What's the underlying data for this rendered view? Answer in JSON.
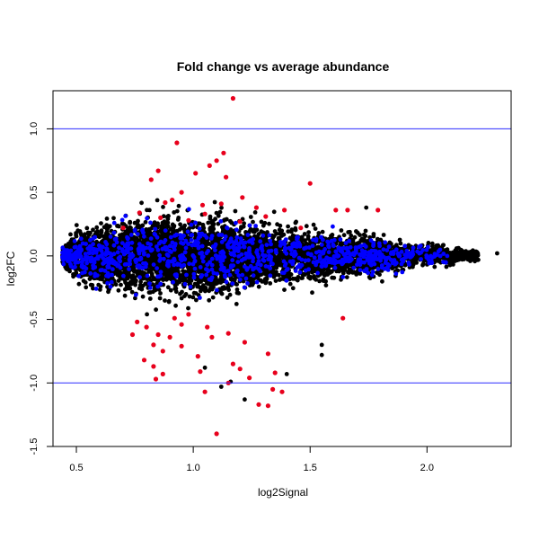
{
  "chart_data": {
    "type": "scatter",
    "title": "Fold change vs average abundance",
    "xlabel": "log2Signal",
    "ylabel": "log2FC",
    "xlim": [
      0.4,
      2.36
    ],
    "ylim": [
      -1.5,
      1.3
    ],
    "xticks": [
      0.5,
      1.0,
      1.5,
      2.0
    ],
    "xtick_labels": [
      "0.5",
      "1.0",
      "1.5",
      "2.0"
    ],
    "yticks": [
      -1.5,
      -1.0,
      -0.5,
      0.0,
      0.5,
      1.0
    ],
    "ytick_labels": [
      "-1.5",
      "-1.0",
      "-0.5",
      "0.0",
      "0.5",
      "1.0"
    ],
    "grid": false,
    "legend": "none",
    "reference_lines": [
      {
        "y": 1.0,
        "color": "#2b2bff"
      },
      {
        "y": -1.0,
        "color": "#2b2bff"
      }
    ],
    "colors": {
      "background_points": "#000000",
      "highlighted_points": "#0000ff",
      "significant_points": "#e8001c"
    },
    "series": [
      {
        "color": "#e8001c",
        "points": [
          [
            1.17,
            1.24
          ],
          [
            0.93,
            0.89
          ],
          [
            1.13,
            0.81
          ],
          [
            1.1,
            0.75
          ],
          [
            1.07,
            0.71
          ],
          [
            0.85,
            0.67
          ],
          [
            1.01,
            0.65
          ],
          [
            1.14,
            0.62
          ],
          [
            0.82,
            0.6
          ],
          [
            1.5,
            0.57
          ],
          [
            0.95,
            0.5
          ],
          [
            1.21,
            0.46
          ],
          [
            0.91,
            0.44
          ],
          [
            0.88,
            0.42
          ],
          [
            1.04,
            0.4
          ],
          [
            1.12,
            0.41
          ],
          [
            1.27,
            0.38
          ],
          [
            1.39,
            0.36
          ],
          [
            1.61,
            0.36
          ],
          [
            1.66,
            0.36
          ],
          [
            1.79,
            0.36
          ],
          [
            0.77,
            0.34
          ],
          [
            1.05,
            0.33
          ],
          [
            1.31,
            0.31
          ],
          [
            0.86,
            0.3
          ],
          [
            0.98,
            0.28
          ],
          [
            1.2,
            0.27
          ],
          [
            0.7,
            0.22
          ],
          [
            1.46,
            0.22
          ],
          [
            1.64,
            -0.49
          ],
          [
            0.98,
            -0.46
          ],
          [
            0.92,
            -0.49
          ],
          [
            0.76,
            -0.52
          ],
          [
            0.95,
            -0.54
          ],
          [
            0.8,
            -0.56
          ],
          [
            1.06,
            -0.56
          ],
          [
            0.74,
            -0.62
          ],
          [
            0.85,
            -0.62
          ],
          [
            0.9,
            -0.64
          ],
          [
            1.08,
            -0.64
          ],
          [
            1.15,
            -0.61
          ],
          [
            0.83,
            -0.7
          ],
          [
            0.95,
            -0.71
          ],
          [
            1.22,
            -0.68
          ],
          [
            0.87,
            -0.75
          ],
          [
            1.02,
            -0.79
          ],
          [
            0.79,
            -0.82
          ],
          [
            1.17,
            -0.85
          ],
          [
            1.32,
            -0.77
          ],
          [
            0.83,
            -0.87
          ],
          [
            0.87,
            -0.93
          ],
          [
            1.03,
            -0.91
          ],
          [
            1.2,
            -0.89
          ],
          [
            1.35,
            -0.92
          ],
          [
            0.84,
            -0.97
          ],
          [
            1.15,
            -1.0
          ],
          [
            1.24,
            -0.96
          ],
          [
            1.34,
            -1.05
          ],
          [
            1.38,
            -1.07
          ],
          [
            1.05,
            -1.07
          ],
          [
            1.28,
            -1.17
          ],
          [
            1.32,
            -1.18
          ],
          [
            1.1,
            -1.4
          ]
        ]
      }
    ]
  }
}
